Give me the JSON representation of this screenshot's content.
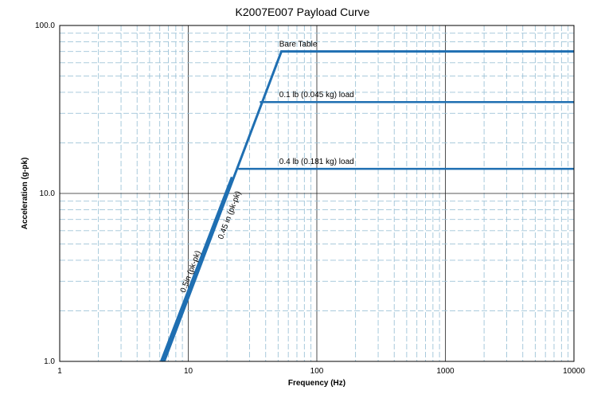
{
  "chart_data": {
    "type": "line",
    "title": "K2007E007 Payload Curve",
    "xlabel": "Frequency (Hz)",
    "ylabel": "Acceleration (g-pk)",
    "x_scale": "log",
    "y_scale": "log",
    "xlim": [
      1,
      10000
    ],
    "ylim": [
      1,
      100
    ],
    "grid": true,
    "x_ticks": [
      {
        "value": 1,
        "label": "1"
      },
      {
        "value": 10,
        "label": "10"
      },
      {
        "value": 100,
        "label": "100"
      },
      {
        "value": 1000,
        "label": "1000"
      },
      {
        "value": 10000,
        "label": "10000"
      }
    ],
    "y_ticks": [
      {
        "value": 1,
        "label": "1.0"
      },
      {
        "value": 10,
        "label": "10.0"
      },
      {
        "value": 100,
        "label": "100.0"
      }
    ],
    "series": [
      {
        "name": "Bare Table",
        "color": "#1f6fb2",
        "points": [
          [
            6.5,
            1.0
          ],
          [
            53,
            70
          ],
          [
            10000,
            70
          ]
        ]
      },
      {
        "name": "0.1 lb (0.045 kg) load",
        "color": "#1f6fb2",
        "points": [
          [
            36,
            35
          ],
          [
            10000,
            35
          ]
        ]
      },
      {
        "name": "0.4 lb (0.181 kg) load",
        "color": "#1f6fb2",
        "points": [
          [
            24.5,
            14
          ],
          [
            10000,
            14
          ]
        ]
      },
      {
        "name": "0.5in (pk-pk)",
        "color": "#1f6fb2",
        "points": [
          [
            6.2,
            1.0
          ],
          [
            22,
            12.5
          ]
        ]
      }
    ],
    "annotations": [
      {
        "text": "Bare Table",
        "x": 51,
        "y": 75,
        "rotate": false
      },
      {
        "text": "0.1 lb (0.045 kg) load",
        "x": 51,
        "y": 37.5,
        "rotate": false
      },
      {
        "text": "0.4 lb (0.181 kg) load",
        "x": 51,
        "y": 15,
        "rotate": false
      },
      {
        "text": "0.5in (pk-pk)",
        "x": 9.4,
        "y": 2.55,
        "rotate": true
      },
      {
        "text": "0.45 in (pk-pk)",
        "x": 18.5,
        "y": 5.3,
        "rotate": true
      }
    ]
  }
}
